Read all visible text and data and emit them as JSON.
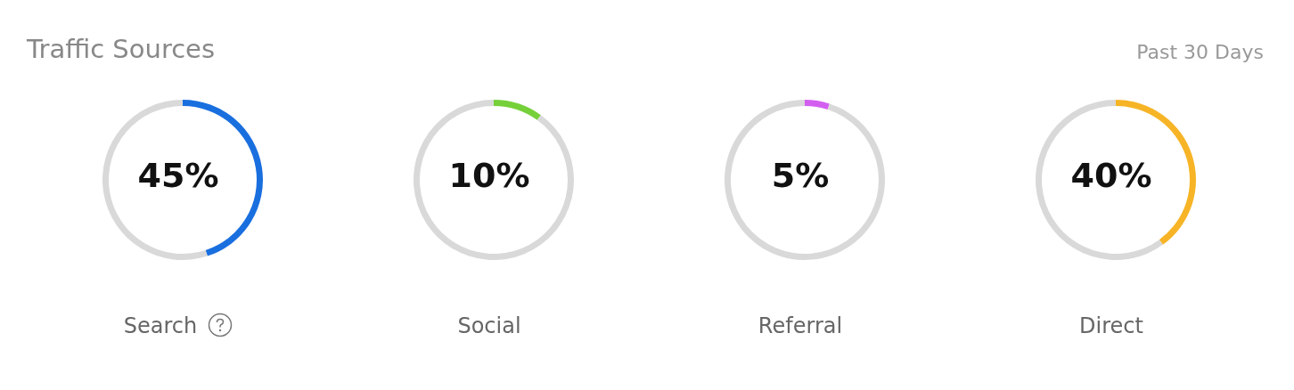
{
  "chart_data": [
    {
      "type": "donut",
      "title": "Traffic Sources",
      "xlabel": "Search",
      "categories": [
        null,
        null
      ],
      "values": [
        45,
        55
      ],
      "colors": [
        "#1a6fdf",
        "#d9d9d9"
      ],
      "annotations": [
        "45%"
      ]
    },
    {
      "type": "donut",
      "xlabel": "Social",
      "categories": [
        null,
        null
      ],
      "values": [
        10,
        90
      ],
      "colors": [
        "#76d03a",
        "#d9d9d9"
      ],
      "annotations": [
        "10%"
      ]
    },
    {
      "type": "donut",
      "xlabel": "Referral",
      "categories": [
        null,
        null
      ],
      "values": [
        5,
        95
      ],
      "colors": [
        "#d35ff0",
        "#d9d9d9"
      ],
      "annotations": [
        "5%"
      ]
    },
    {
      "type": "donut",
      "xlabel": "Direct",
      "categories": [
        null,
        null
      ],
      "values": [
        40,
        60
      ],
      "colors": [
        "#f6b426",
        "#d9d9d9"
      ],
      "annotations": [
        "40%",
        "Past 30 Days"
      ]
    }
  ]
}
